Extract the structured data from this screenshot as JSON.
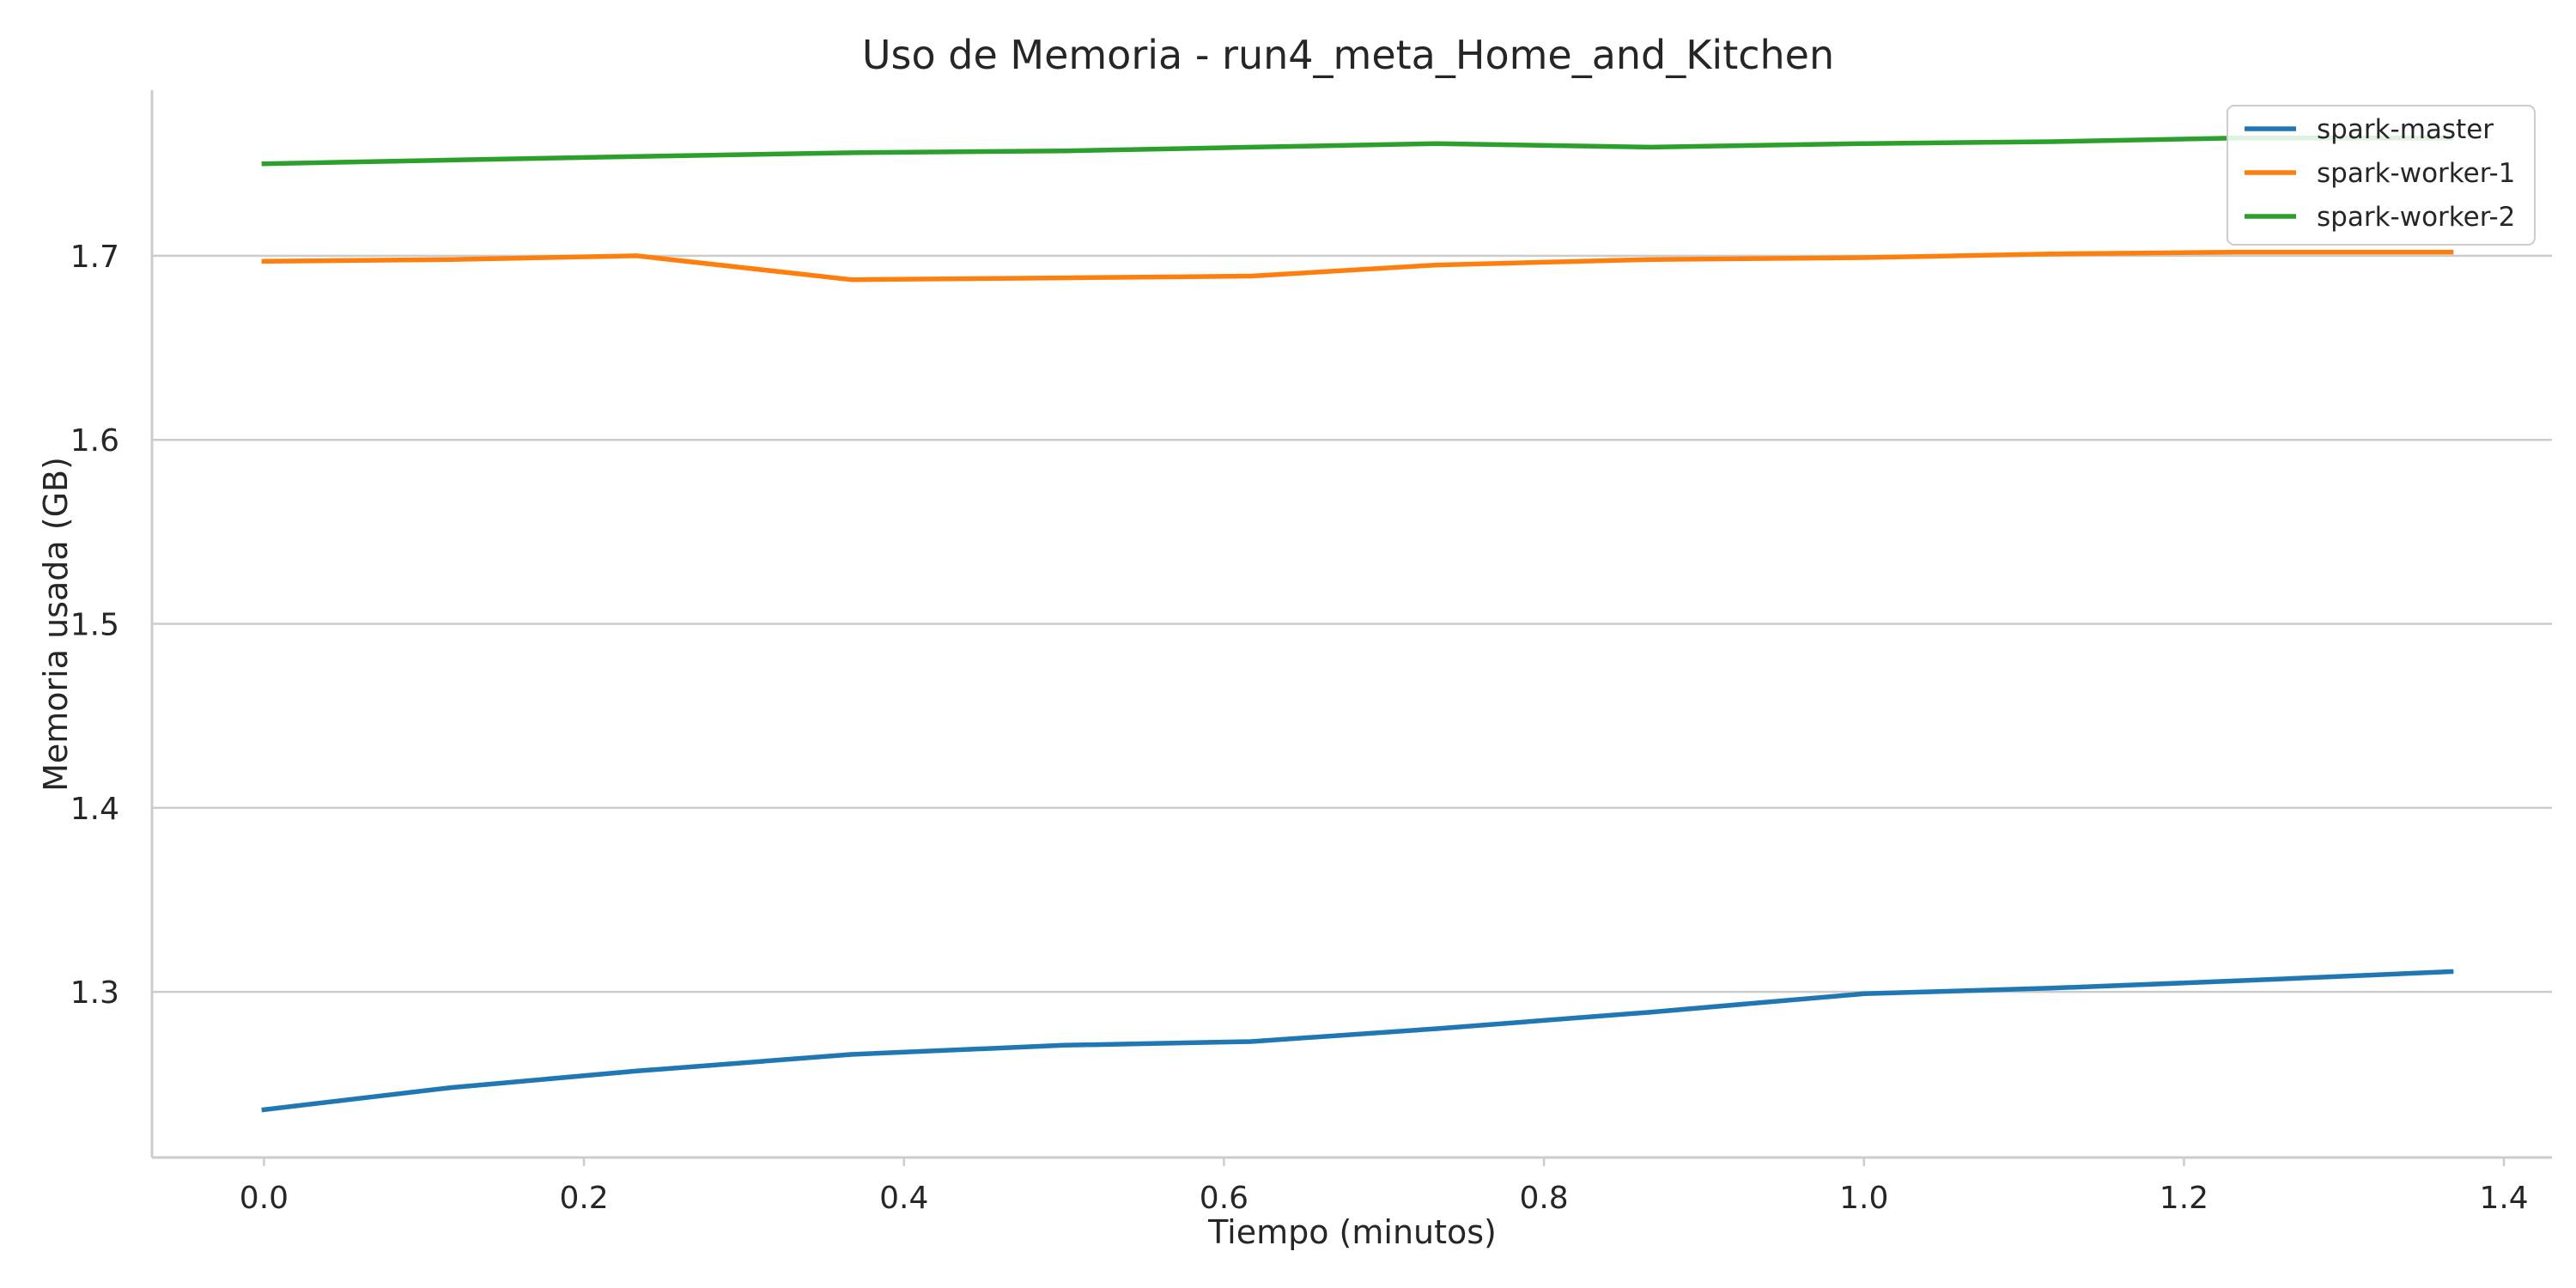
{
  "chart_data": {
    "type": "line",
    "title": "Uso de Memoria - run4_meta_Home_and_Kitchen",
    "xlabel": "Tiempo (minutos)",
    "ylabel": "Memoria usada (GB)",
    "xlim": [
      -0.07,
      1.43
    ],
    "ylim": [
      1.21,
      1.79
    ],
    "x_ticks": [
      0.0,
      0.2,
      0.4,
      0.6,
      0.8,
      1.0,
      1.2,
      1.4
    ],
    "x_tick_labels": [
      "0.0",
      "0.2",
      "0.4",
      "0.6",
      "0.8",
      "1.0",
      "1.2",
      "1.4"
    ],
    "y_ticks": [
      1.3,
      1.4,
      1.5,
      1.6,
      1.7
    ],
    "y_tick_labels": [
      "1.3",
      "1.4",
      "1.5",
      "1.6",
      "1.7"
    ],
    "grid": "horizontal",
    "legend_position": "top-right",
    "x": [
      0.0,
      0.117,
      0.233,
      0.367,
      0.5,
      0.617,
      0.733,
      0.867,
      1.0,
      1.117,
      1.233,
      1.367
    ],
    "series": [
      {
        "name": "spark-master",
        "color": "#1f77b4",
        "values": [
          1.236,
          1.248,
          1.257,
          1.266,
          1.271,
          1.273,
          1.28,
          1.289,
          1.299,
          1.302,
          1.306,
          1.311
        ]
      },
      {
        "name": "spark-worker-1",
        "color": "#ff7f0e",
        "values": [
          1.697,
          1.698,
          1.7,
          1.687,
          1.688,
          1.689,
          1.695,
          1.698,
          1.699,
          1.701,
          1.702,
          1.702
        ]
      },
      {
        "name": "spark-worker-2",
        "color": "#2ca02c",
        "values": [
          1.75,
          1.752,
          1.754,
          1.756,
          1.757,
          1.759,
          1.761,
          1.759,
          1.761,
          1.762,
          1.764,
          1.764
        ]
      }
    ]
  }
}
